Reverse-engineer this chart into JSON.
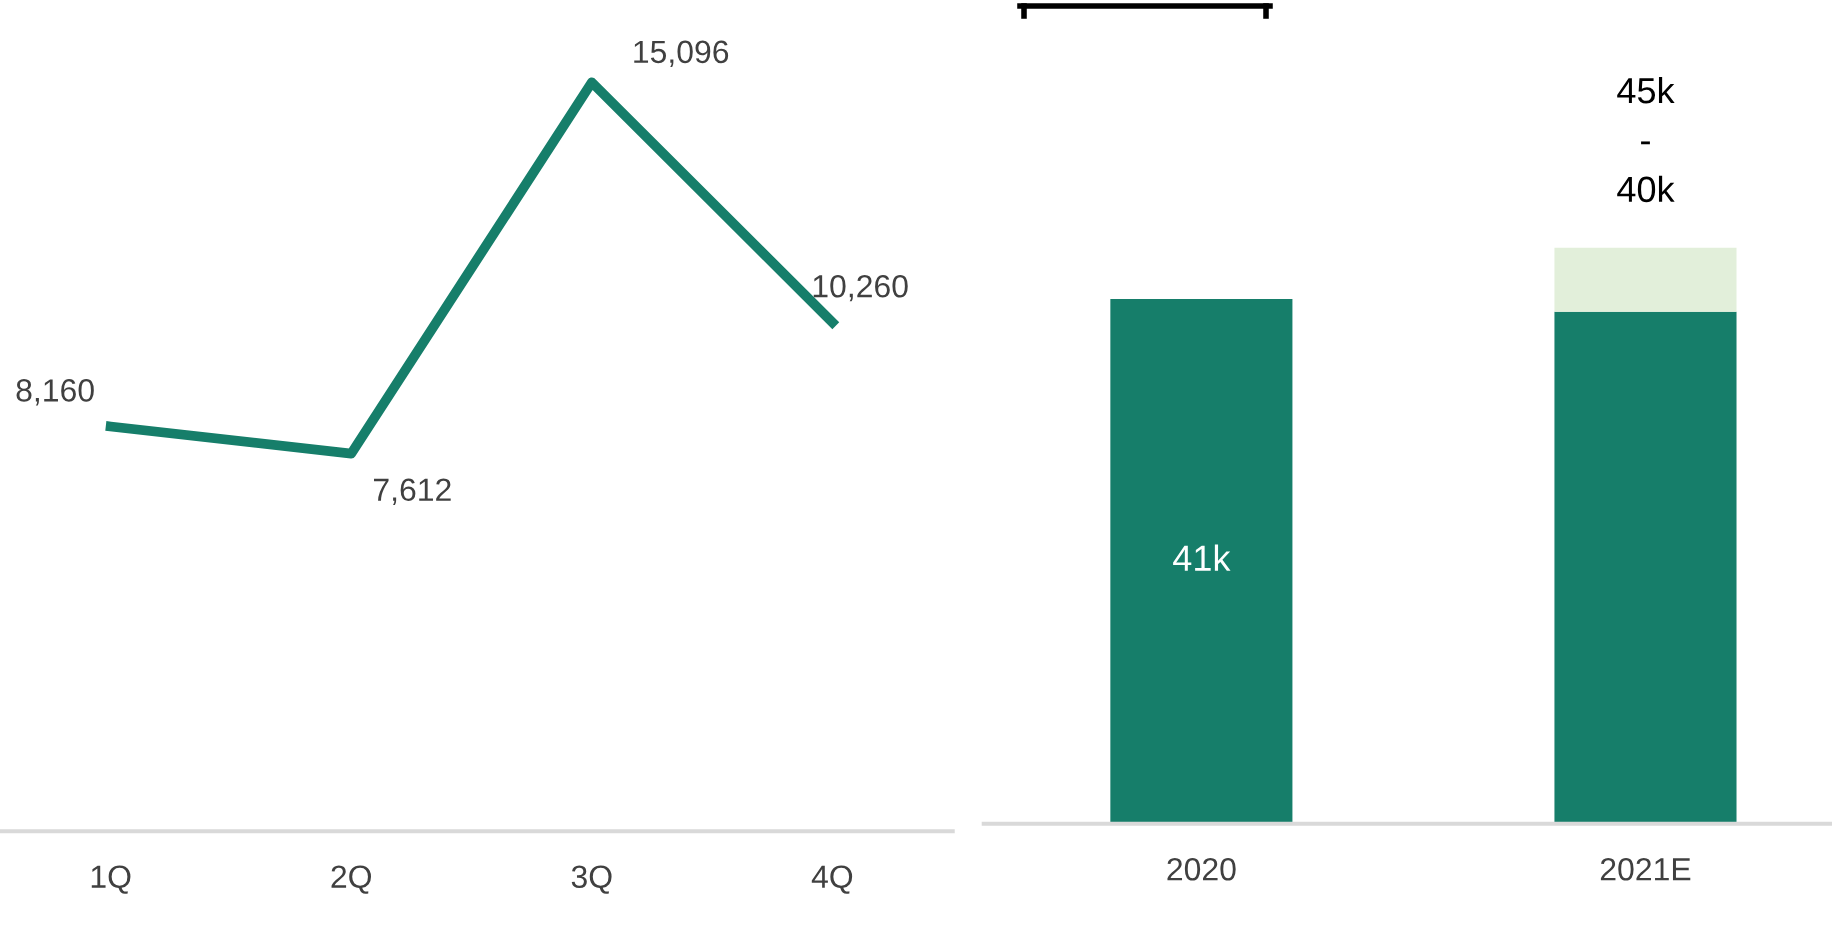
{
  "chart_data": [
    {
      "type": "line",
      "categories": [
        "1Q",
        "2Q",
        "3Q",
        "4Q"
      ],
      "series": [
        {
          "color": "#167e6a",
          "values": [
            8160,
            7612,
            15096,
            10260
          ],
          "value_labels": [
            "8,160",
            "7,612",
            "15,096",
            "10,260"
          ]
        }
      ],
      "tick_labels": "x",
      "marker": "none",
      "line_style": "solid",
      "grid": false,
      "legend": false
    },
    {
      "type": "bar",
      "stacked": true,
      "categories": [
        "2020",
        "2021E"
      ],
      "series": [
        {
          "color": "#167e6a",
          "values": [
            41,
            40
          ],
          "value_labels": [
            "41k",
            null
          ]
        },
        {
          "color": "#e2efda",
          "values": [
            null,
            5
          ]
        }
      ],
      "totals": [
        null,
        "45k\n-\n40k"
      ],
      "tick_labels": "x",
      "grid": false,
      "legend": false
    }
  ]
}
